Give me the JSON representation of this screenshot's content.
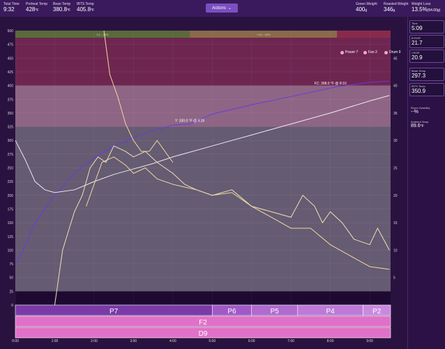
{
  "topbar": {
    "total_time": {
      "label": "Total Time",
      "value": "9:32"
    },
    "preheat": {
      "label": "Preheat Temp",
      "value": "428",
      "unit": "°F"
    },
    "bean_temp": {
      "label": "Bean Temp",
      "value": "380.8",
      "unit": "°F"
    },
    "ibts_temp": {
      "label": "IBTS Temp",
      "value": "405.8",
      "unit": "°F"
    },
    "actions_label": "Actions",
    "green_weight": {
      "label": "Green Weight",
      "value": "400",
      "unit": "g"
    },
    "roasted_weight": {
      "label": "Roasted Weight",
      "value": "346",
      "unit": "g"
    },
    "weight_loss": {
      "label": "Weight Loss",
      "value": "13.5%",
      "unit": "(54.00g)"
    }
  },
  "sidebar": {
    "cards": [
      {
        "label": "Time",
        "value": "5:09"
      },
      {
        "label": "B-ROR",
        "value": "21.7"
      },
      {
        "label": "I-ROR",
        "value": "20.9"
      },
      {
        "label": "Bean Temp",
        "value": "297.3"
      },
      {
        "label": "IBTS Temp",
        "value": "350.9"
      }
    ],
    "room_humidity": {
      "label": "Room Humidity",
      "value": "--%"
    },
    "ambient_temp": {
      "label": "Ambient Temp",
      "value": "89.6",
      "unit": "°F"
    }
  },
  "legend": [
    {
      "label": "Power 7"
    },
    {
      "label": "Fan 2"
    },
    {
      "label": "Drum 9"
    }
  ],
  "bands": [
    {
      "label": "0:1 - 48%",
      "color": "#5a6a3a"
    },
    {
      "label": "7:46 - 18%",
      "color": "#8a6a48"
    },
    {
      "label": "",
      "color": "#8a2a4a"
    }
  ],
  "annotations": {
    "fc": "FC: 398.0 °F @ 8:10",
    "y": "Y: 330.0 °F @ 4:26"
  },
  "phases": {
    "power": [
      {
        "label": "P7",
        "start": 0,
        "end": 5.0,
        "color": "#7b3aa8"
      },
      {
        "label": "P6",
        "start": 5.0,
        "end": 6.0,
        "color": "#a259c8"
      },
      {
        "label": "P5",
        "start": 6.0,
        "end": 7.17,
        "color": "#b06ad0"
      },
      {
        "label": "P4",
        "start": 7.17,
        "end": 8.83,
        "color": "#bd7ad8"
      },
      {
        "label": "P2",
        "start": 8.83,
        "end": 9.53,
        "color": "#c989e0"
      }
    ],
    "fan": [
      {
        "label": "F2",
        "start": 0,
        "end": 9.53,
        "color": "#e070c8"
      }
    ],
    "drum": [
      {
        "label": "D9",
        "start": 0,
        "end": 9.53,
        "color": "#e070c8"
      }
    ]
  },
  "chart_data": {
    "type": "line",
    "xlabel": "",
    "ylabel": "",
    "x_ticks": [
      "0:00",
      "1:00",
      "2:00",
      "3:00",
      "4:00",
      "5:00",
      "6:00",
      "7:00",
      "8:00",
      "9:00"
    ],
    "ylim": [
      0,
      500
    ],
    "y_ticks": [
      25,
      50,
      75,
      100,
      125,
      150,
      175,
      200,
      225,
      250,
      275,
      300,
      325,
      350,
      375,
      400,
      425,
      450,
      475,
      500
    ],
    "y2lim": [
      0,
      50
    ],
    "y2_ticks": [
      5,
      10,
      15,
      20,
      25,
      30,
      35,
      40,
      45
    ],
    "series": [
      {
        "color": "#6a3adf",
        "x": [
          0,
          0.2,
          0.5,
          1.0,
          1.5,
          2.0,
          2.5,
          3.0,
          3.5,
          4.0,
          4.43,
          5.0,
          6.0,
          7.0,
          8.17,
          9.0,
          9.5
        ],
        "values": [
          75,
          100,
          150,
          200,
          240,
          268,
          290,
          305,
          318,
          328,
          330,
          348,
          365,
          380,
          398,
          406,
          408
        ]
      },
      {
        "color": "#f0e8f0",
        "x": [
          0,
          0.25,
          0.5,
          0.75,
          1.0,
          1.5,
          2.0,
          2.5,
          3.0,
          3.5,
          4.0,
          5.0,
          6.0,
          7.0,
          8.0,
          9.0,
          9.5
        ],
        "values": [
          300,
          265,
          225,
          210,
          205,
          210,
          225,
          238,
          248,
          258,
          270,
          290,
          310,
          330,
          350,
          372,
          382
        ]
      },
      {
        "color": "#f0d8a0",
        "x": [
          1.8,
          1.9,
          2.0,
          2.2,
          2.5,
          2.8,
          3.0,
          3.3,
          3.6,
          4.0,
          4.3,
          4.6,
          5.0,
          5.5,
          6.0,
          6.5,
          7.0,
          7.5,
          8.0,
          8.5,
          9.0,
          9.5
        ],
        "values": [
          18,
          20,
          22,
          26,
          27,
          25.5,
          24,
          25,
          23,
          22,
          21.5,
          21,
          20,
          20.5,
          18,
          16,
          14,
          14,
          11,
          9,
          7,
          6.5
        ]
      },
      {
        "color": "#f0e0b8",
        "x": [
          1.0,
          1.2,
          1.5,
          1.7,
          1.9,
          2.1,
          2.3,
          2.5,
          2.8,
          3.0,
          3.3,
          3.6,
          4.0,
          4.3,
          4.6,
          5.0,
          5.5,
          6.0,
          6.5,
          7.0,
          7.3,
          7.6,
          7.8,
          8.0,
          8.3,
          8.6,
          9.0,
          9.2,
          9.5
        ],
        "values": [
          0,
          10,
          17,
          20,
          25,
          27,
          26,
          29,
          28,
          27,
          28,
          26,
          24,
          22,
          21,
          20,
          21,
          18,
          17,
          16,
          20,
          18,
          15,
          17,
          15,
          12,
          11,
          14,
          10
        ]
      },
      {
        "color": "#f0d8a0",
        "x": [
          2.25,
          2.4,
          2.6,
          2.8,
          3.0,
          3.2,
          3.4,
          3.6,
          4.0
        ],
        "values": [
          50,
          42,
          38,
          33,
          30,
          28,
          28,
          30,
          26
        ]
      }
    ]
  }
}
